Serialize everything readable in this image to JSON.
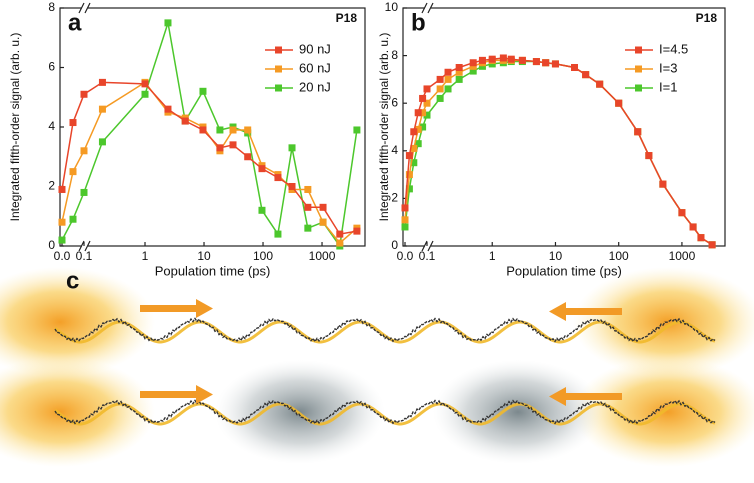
{
  "chart_data": [
    {
      "type": "line",
      "panel_label": "a",
      "annotation": "P18",
      "y_label": "Integrated fifth-order signal (arb. u.)",
      "x_label": "Population time (ps)",
      "xscale": "linear-log",
      "xbreak": 0.1,
      "xlim": [
        0,
        4400
      ],
      "ylim": [
        0,
        8
      ],
      "xticks": [
        {
          "value": 0,
          "label": "0.0"
        },
        0.1,
        1,
        10,
        100,
        1000
      ],
      "yticks": [
        0,
        2,
        4,
        6,
        8
      ],
      "legend": "upper right",
      "x": [
        0,
        0.05,
        0.1,
        0.19,
        1,
        2.45,
        4.8,
        9.6,
        18.6,
        31,
        55,
        96,
        179,
        310,
        575,
        1040,
        2000,
        3900
      ],
      "series": [
        {
          "name": "90 nJ",
          "color": "#e8452a",
          "values": [
            1.9,
            4.15,
            5.1,
            5.5,
            5.45,
            4.6,
            4.2,
            3.9,
            3.3,
            3.4,
            3.0,
            2.6,
            2.3,
            2.0,
            1.3,
            1.3,
            0.4,
            0.5
          ]
        },
        {
          "name": "60 nJ",
          "color": "#f59a23",
          "values": [
            0.8,
            2.5,
            3.2,
            4.6,
            5.5,
            4.5,
            4.3,
            4.0,
            3.2,
            3.9,
            3.9,
            2.7,
            2.4,
            1.9,
            1.9,
            0.8,
            0.1,
            0.6
          ]
        },
        {
          "name": "20 nJ",
          "color": "#4cc72c",
          "values": [
            0.2,
            0.9,
            1.8,
            3.5,
            5.1,
            7.5,
            4.2,
            5.2,
            3.9,
            4.0,
            3.8,
            1.2,
            0.4,
            3.3,
            0.6,
            0.8,
            0.0,
            3.9
          ]
        }
      ]
    },
    {
      "type": "line",
      "panel_label": "b",
      "annotation": "P18",
      "y_label": "Integrated fifth-order signal (arb. u.)",
      "x_label": "Population time (ps)",
      "xscale": "linear-log",
      "xbreak": 0.1,
      "xlim": [
        0,
        4000
      ],
      "ylim": [
        0,
        10
      ],
      "xticks": [
        {
          "value": 0,
          "label": "0.0"
        },
        0.1,
        1,
        10,
        100,
        1000
      ],
      "yticks": [
        0,
        2,
        4,
        6,
        8,
        10
      ],
      "legend": "upper right",
      "x": [
        0,
        0.02,
        0.04,
        0.06,
        0.08,
        0.1,
        0.15,
        0.2,
        0.3,
        0.5,
        0.7,
        1,
        1.5,
        2,
        3,
        5,
        7,
        10,
        20,
        30,
        50,
        100,
        200,
        300,
        500,
        1000,
        1500,
        2000,
        3000
      ],
      "series": [
        {
          "name": "I=4.5",
          "color": "#e8452a",
          "values": [
            1.6,
            3.8,
            4.8,
            5.6,
            6.2,
            6.6,
            7.0,
            7.3,
            7.5,
            7.7,
            7.8,
            7.85,
            7.9,
            7.85,
            7.8,
            7.75,
            7.7,
            7.65,
            7.5,
            7.2,
            6.8,
            6.0,
            4.8,
            3.8,
            2.6,
            1.4,
            0.8,
            0.35,
            0.05
          ]
        },
        {
          "name": "I=3",
          "color": "#f59a23",
          "values": [
            1.1,
            3.0,
            4.1,
            4.9,
            5.6,
            6.0,
            6.6,
            7.0,
            7.3,
            7.55,
            7.7,
            7.8,
            7.8,
            7.8,
            7.8,
            7.75,
            7.7,
            7.65,
            7.5,
            7.2,
            6.8,
            6.0,
            4.8,
            3.8,
            2.6,
            1.4,
            0.8,
            0.35,
            0.05
          ]
        },
        {
          "name": "I=1",
          "color": "#4cc72c",
          "values": [
            0.8,
            2.4,
            3.5,
            4.3,
            5.0,
            5.5,
            6.2,
            6.6,
            7.0,
            7.35,
            7.55,
            7.65,
            7.7,
            7.75,
            7.75,
            7.75,
            7.7,
            7.65,
            7.5,
            7.2,
            6.8,
            6.0,
            4.8,
            3.8,
            2.6,
            1.4,
            0.8,
            0.35,
            0.05
          ]
        }
      ]
    }
  ],
  "panel_c": {
    "label": "c"
  }
}
